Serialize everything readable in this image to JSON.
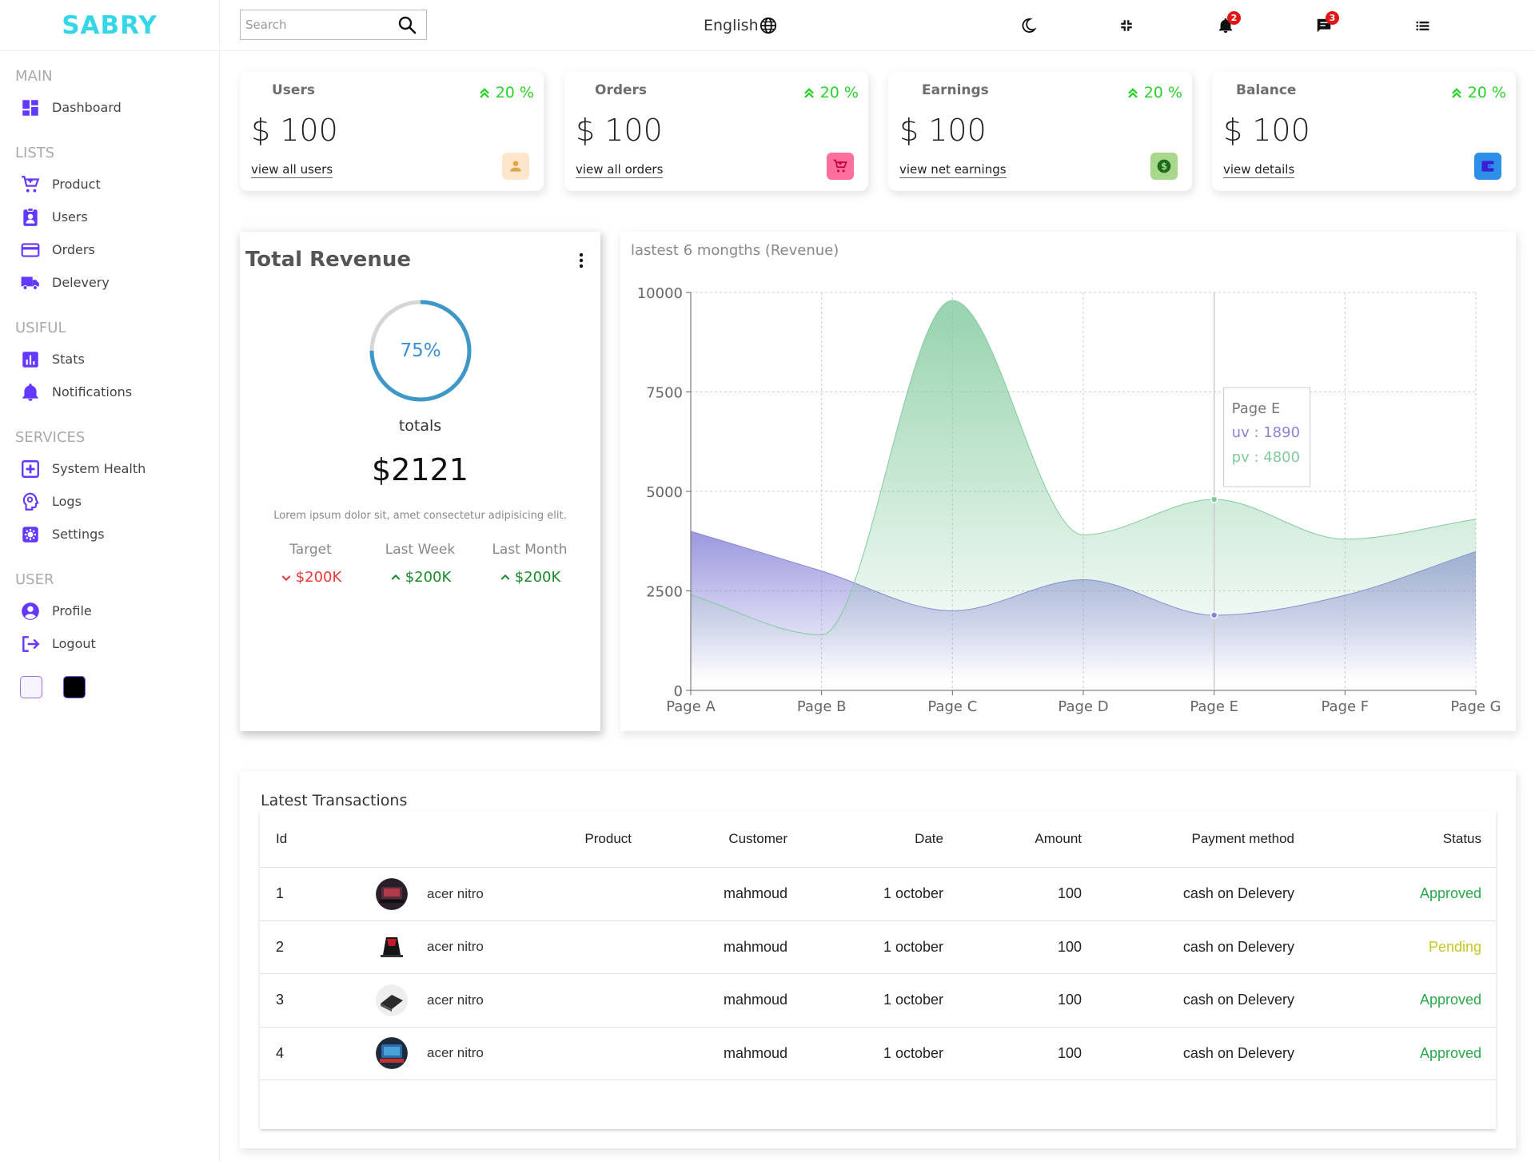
{
  "brand": {
    "logo": "SABRY"
  },
  "sidebar": {
    "sections": [
      {
        "title": "MAIN",
        "items": [
          {
            "label": "Dashboard",
            "icon": "dashboard-icon"
          }
        ]
      },
      {
        "title": "LISTS",
        "items": [
          {
            "label": "Product",
            "icon": "cart-icon"
          },
          {
            "label": "Users",
            "icon": "user-badge-icon"
          },
          {
            "label": "Orders",
            "icon": "credit-card-icon"
          },
          {
            "label": "Delevery",
            "icon": "truck-icon"
          }
        ]
      },
      {
        "title": "USIFUL",
        "items": [
          {
            "label": "Stats",
            "icon": "bar-chart-icon"
          },
          {
            "label": "Notifications",
            "icon": "bell-icon"
          }
        ]
      },
      {
        "title": "SERVICES",
        "items": [
          {
            "label": "System Health",
            "icon": "plus-box-icon"
          },
          {
            "label": "Logs",
            "icon": "brain-icon"
          },
          {
            "label": "Settings",
            "icon": "gear-icon"
          }
        ]
      },
      {
        "title": "USER",
        "items": [
          {
            "label": "Profile",
            "icon": "account-circle-icon"
          },
          {
            "label": "Logout",
            "icon": "logout-icon"
          }
        ]
      }
    ],
    "accent_color": "#6439ff"
  },
  "navbar": {
    "search_placeholder": "Search",
    "language": "English",
    "notifications_count": "2",
    "messages_count": "3"
  },
  "widgets": [
    {
      "title": "Users",
      "percent": "20 %",
      "value": "$ 100",
      "link": "view all users",
      "icon": "person-icon",
      "icon_bg": "#fde6cc",
      "icon_color": "#e0a54a"
    },
    {
      "title": "Orders",
      "percent": "20 %",
      "value": "$ 100",
      "link": "view all orders",
      "icon": "cart-icon",
      "icon_bg": "#ff6f9e",
      "icon_color": "#c2003c"
    },
    {
      "title": "Earnings",
      "percent": "20 %",
      "value": "$ 100",
      "link": "view net earnings",
      "icon": "dollar-icon",
      "icon_bg": "#a8d88b",
      "icon_color": "#1c6b1c"
    },
    {
      "title": "Balance",
      "percent": "20 %",
      "value": "$ 100",
      "link": "view details",
      "icon": "wallet-icon",
      "icon_bg": "#2d8fe8",
      "icon_color": "#3b1fd6"
    }
  ],
  "featured": {
    "title": "Total Revenue",
    "progress_percent": 75,
    "progress_label": "75%",
    "totals_label": "totals",
    "amount": "$2121",
    "description": "Lorem ipsum dolor sit, amet consectetur adipisicing elit.",
    "summary": [
      {
        "label": "Target",
        "value": "$200K",
        "trend": "down"
      },
      {
        "label": "Last Week",
        "value": "$200K",
        "trend": "up"
      },
      {
        "label": "Last Month",
        "value": "$200K",
        "trend": "up"
      }
    ]
  },
  "chart_data": {
    "type": "area",
    "title": "lastest 6 mongths (Revenue)",
    "categories": [
      "Page A",
      "Page B",
      "Page C",
      "Page D",
      "Page E",
      "Page F",
      "Page G"
    ],
    "series": [
      {
        "name": "uv",
        "values": [
          4000,
          3000,
          2000,
          2780,
          1890,
          2390,
          3490
        ],
        "color": "#8884d8"
      },
      {
        "name": "pv",
        "values": [
          2400,
          1398,
          9800,
          3908,
          4800,
          3800,
          4300
        ],
        "color": "#82ca9d"
      }
    ],
    "y_ticks": [
      0,
      2500,
      5000,
      7500,
      10000
    ],
    "ylim": [
      0,
      10000
    ],
    "grid": true,
    "tooltip": {
      "title": "Page E",
      "uv_label": "uv : 1890",
      "pv_label": "pv : 4800"
    }
  },
  "table": {
    "title": "Latest Transactions",
    "headers": [
      "Id",
      "Product",
      "Customer",
      "Date",
      "Amount",
      "Payment method",
      "Status"
    ],
    "rows": [
      {
        "id": "1",
        "product": "acer nitro",
        "customer": "mahmoud",
        "date": "1 october",
        "amount": "100",
        "method": "cash on Delevery",
        "status": "Approved"
      },
      {
        "id": "2",
        "product": "acer nitro",
        "customer": "mahmoud",
        "date": "1 october",
        "amount": "100",
        "method": "cash on Delevery",
        "status": "Pending"
      },
      {
        "id": "3",
        "product": "acer nitro",
        "customer": "mahmoud",
        "date": "1 october",
        "amount": "100",
        "method": "cash on Delevery",
        "status": "Approved"
      },
      {
        "id": "4",
        "product": "acer nitro",
        "customer": "mahmoud",
        "date": "1 october",
        "amount": "100",
        "method": "cash on Delevery",
        "status": "Approved"
      }
    ]
  },
  "colors": {
    "approved": "#2aa84a",
    "pending": "#c6c622",
    "logo": "#35d6e8",
    "trend_up": "#2bd12b"
  }
}
